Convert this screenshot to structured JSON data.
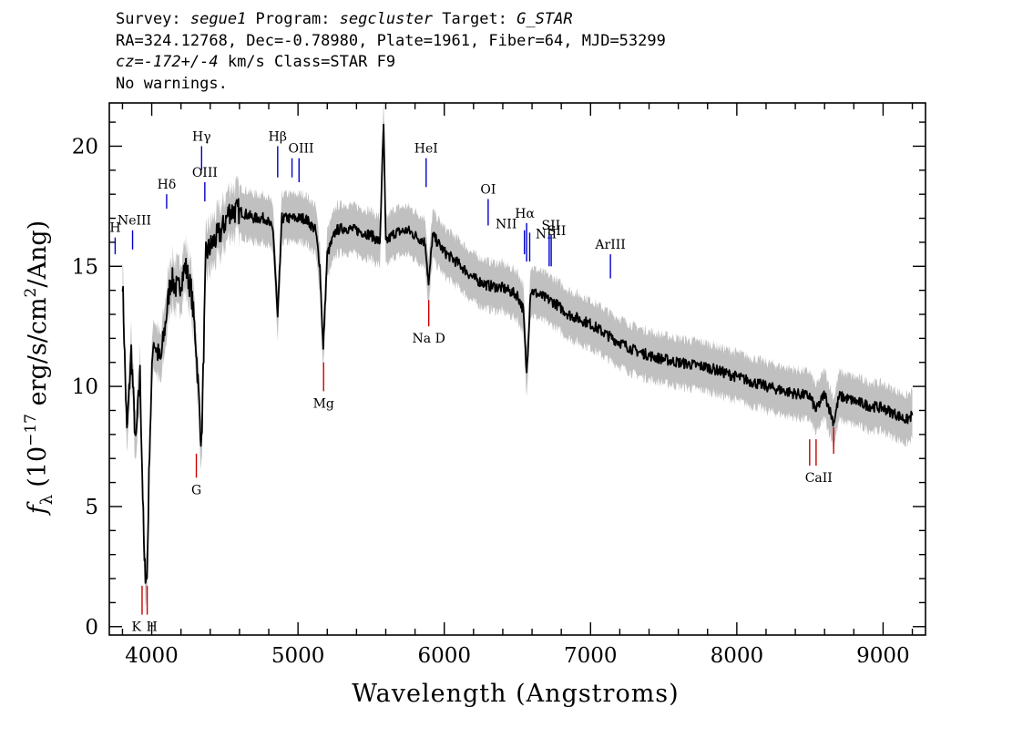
{
  "header": {
    "l1_a": "Survey: ",
    "survey": "segue1",
    "l1_b": " Program: ",
    "program": "segcluster",
    "l1_c": " Target: ",
    "target": "G_STAR",
    "line2": "RA=324.12768, Dec=-0.78980, Plate=1961, Fiber=64, MJD=53299",
    "l3_cz": "cz=-172+/-4",
    "l3_rest": " km/s Class=STAR F9",
    "line4": "No warnings."
  },
  "colors": {
    "flux": "#000000",
    "error_band": "#c0c0c0",
    "emission": "#0000cc",
    "absorption": "#cc0000",
    "frame": "#000000"
  },
  "chart_data": {
    "type": "line",
    "xlabel": "Wavelength (Angstroms)",
    "ylabel": "f_λ (10^-17 erg/s/cm²/Ang)",
    "ylabel_parts": {
      "f": "f",
      "lambda": "λ",
      "unit_a": "(10",
      "exp": "−17",
      "unit_b": " erg/s/cm",
      "sq": "2",
      "unit_c": "/Ang)"
    },
    "xlim": [
      3710,
      9290
    ],
    "ylim": [
      -0.35,
      21.8
    ],
    "xticks": [
      4000,
      5000,
      6000,
      7000,
      8000,
      9000
    ],
    "xtick_labels": [
      "4000",
      "5000",
      "6000",
      "7000",
      "8000",
      "9000"
    ],
    "yticks": [
      0,
      5,
      10,
      15,
      20
    ],
    "ytick_labels": [
      "0",
      "5",
      "10",
      "15",
      "20"
    ],
    "grid": false,
    "series": [
      {
        "style": "black",
        "x": [
          3800,
          3830,
          3860,
          3890,
          3920,
          3935,
          3950,
          3968,
          3985,
          4010,
          4060,
          4101,
          4130,
          4180,
          4230,
          4270,
          4300,
          4340,
          4370,
          4420,
          4480,
          4530,
          4600,
          4700,
          4780,
          4830,
          4861,
          4890,
          4950,
          5050,
          5120,
          5150,
          5172,
          5200,
          5260,
          5320,
          5400,
          5500,
          5560,
          5585,
          5600,
          5660,
          5750,
          5820,
          5870,
          5893,
          5920,
          6000,
          6100,
          6200,
          6300,
          6400,
          6500,
          6540,
          6563,
          6590,
          6650,
          6750,
          6850,
          7000,
          7150,
          7300,
          7450,
          7600,
          7800,
          8000,
          8200,
          8400,
          8498,
          8542,
          8600,
          8662,
          8700,
          8800,
          8900,
          9000,
          9100,
          9160,
          9200
        ],
        "y": [
          14.5,
          8.0,
          11.5,
          7.5,
          10.5,
          6.5,
          2.5,
          2.0,
          7.5,
          12.0,
          11.0,
          13.0,
          14.5,
          14.0,
          15.0,
          14.0,
          12.0,
          7.5,
          15.5,
          16.0,
          16.5,
          17.3,
          17.3,
          17.0,
          17.0,
          16.5,
          12.8,
          17.0,
          17.0,
          17.0,
          16.5,
          15.0,
          11.5,
          15.5,
          16.5,
          16.6,
          16.5,
          16.3,
          16.0,
          20.9,
          16.0,
          16.4,
          16.5,
          16.2,
          16.0,
          14.2,
          16.3,
          15.6,
          15.1,
          14.5,
          14.2,
          14.1,
          13.8,
          13.2,
          10.5,
          14.0,
          13.8,
          13.5,
          13.0,
          12.6,
          12.0,
          11.5,
          11.2,
          11.0,
          10.8,
          10.4,
          10.0,
          9.7,
          9.6,
          9.0,
          9.7,
          8.5,
          9.6,
          9.4,
          9.2,
          9.1,
          8.8,
          8.6,
          8.8
        ]
      }
    ],
    "line_labels": [
      {
        "label": "H",
        "wave": 3750,
        "y1": 15.5,
        "y2": 16.2,
        "kind": "emission"
      },
      {
        "label": "NeIII",
        "wave": 3869,
        "y1": 15.7,
        "y2": 16.5,
        "kind": "emission"
      },
      {
        "label": "Hδ",
        "wave": 4102,
        "y1": 17.4,
        "y2": 18.0,
        "kind": "emission"
      },
      {
        "label": "Hγ",
        "wave": 4341,
        "y1": 19.0,
        "y2": 20.0,
        "kind": "emission"
      },
      {
        "label": "OIII",
        "wave": 4363,
        "y1": 17.7,
        "y2": 18.5,
        "kind": "emission"
      },
      {
        "label": "Hβ",
        "wave": 4861,
        "y1": 18.7,
        "y2": 20.0,
        "kind": "emission"
      },
      {
        "label": "OIII",
        "wave": 4959,
        "y1": 18.7,
        "y2": 19.5,
        "kind": "emission"
      },
      {
        "label": "OIII",
        "wave": 5007,
        "y1": 18.5,
        "y2": 19.5,
        "kind": "emission"
      },
      {
        "label": "HeI",
        "wave": 5876,
        "y1": 18.3,
        "y2": 19.5,
        "kind": "emission"
      },
      {
        "label": "OI",
        "wave": 6300,
        "y1": 16.7,
        "y2": 17.8,
        "kind": "emission"
      },
      {
        "label": "NII",
        "wave": 6548,
        "y1": 15.5,
        "y2": 16.5,
        "kind": "emission"
      },
      {
        "label": "Hα",
        "wave": 6563,
        "y1": 15.2,
        "y2": 16.8,
        "kind": "emission"
      },
      {
        "label": "NII",
        "wave": 6584,
        "y1": 15.2,
        "y2": 16.4,
        "kind": "emission"
      },
      {
        "label": "SII",
        "wave": 6717,
        "y1": 15.0,
        "y2": 16.3,
        "kind": "emission"
      },
      {
        "label": "SII",
        "wave": 6731,
        "y1": 15.0,
        "y2": 16.3,
        "kind": "emission"
      },
      {
        "label": "ArIII",
        "wave": 7136,
        "y1": 14.5,
        "y2": 15.5,
        "kind": "emission"
      },
      {
        "label": "K",
        "wave": 3934,
        "y1": 0.5,
        "y2": 1.7,
        "kind": "absorption"
      },
      {
        "label": "H",
        "wave": 3969,
        "y1": 0.5,
        "y2": 1.7,
        "kind": "absorption"
      },
      {
        "label": "G",
        "wave": 4305,
        "y1": 6.2,
        "y2": 7.2,
        "kind": "absorption"
      },
      {
        "label": "Mg",
        "wave": 5175,
        "y1": 9.8,
        "y2": 11.0,
        "kind": "absorption"
      },
      {
        "label": "Na D",
        "wave": 5894,
        "y1": 12.5,
        "y2": 13.6,
        "kind": "absorption"
      },
      {
        "label": "CaII",
        "wave": 8498,
        "y1": 6.7,
        "y2": 7.8,
        "kind": "absorption"
      },
      {
        "label": "CaII",
        "wave": 8542,
        "y1": 6.7,
        "y2": 7.8,
        "kind": "absorption"
      },
      {
        "label": "CaII",
        "wave": 8662,
        "y1": 7.2,
        "y2": 8.3,
        "kind": "absorption"
      }
    ]
  }
}
